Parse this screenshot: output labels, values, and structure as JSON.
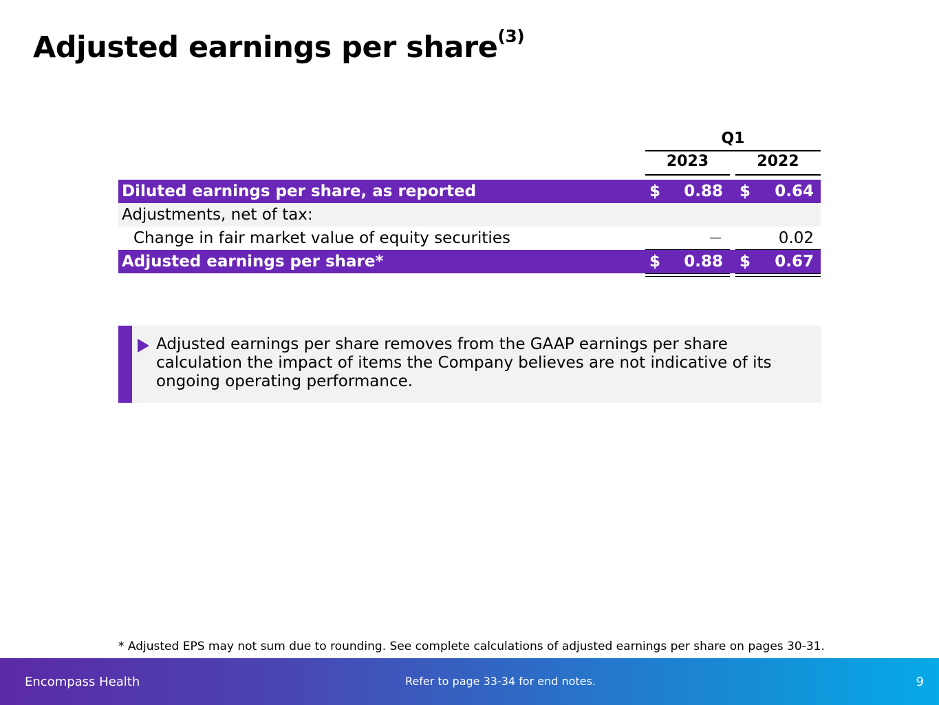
{
  "title": "Adjusted earnings per share",
  "title_sup": "(3)",
  "table": {
    "period_header": "Q1",
    "years": [
      "2023",
      "2022"
    ],
    "rows": [
      {
        "label": "Diluted earnings per share, as reported",
        "style": "highlight",
        "values": [
          "0.88",
          "0.64"
        ],
        "currency": "$"
      },
      {
        "label": "Adjustments, net of tax:",
        "style": "subheader"
      },
      {
        "label": "Change in fair market value of equity securities",
        "style": "indent",
        "values": [
          "—",
          "0.02"
        ]
      },
      {
        "label": "Adjusted earnings per share*",
        "style": "highlight",
        "values": [
          "0.88",
          "0.67"
        ],
        "currency": "$"
      }
    ]
  },
  "note": "Adjusted earnings per share removes from the GAAP earnings per share calculation the impact of items the Company believes are not indicative of its ongoing operating performance.",
  "footnote": "*  Adjusted EPS may not sum due to rounding. See complete calculations of adjusted earnings per share on pages 30-31.",
  "footer": {
    "brand": "Encompass Health",
    "center": "Refer to page 33-34  for end notes.",
    "page": "9"
  },
  "colors": {
    "accent": "#6a26b7",
    "gray": "#f2f2f2"
  }
}
